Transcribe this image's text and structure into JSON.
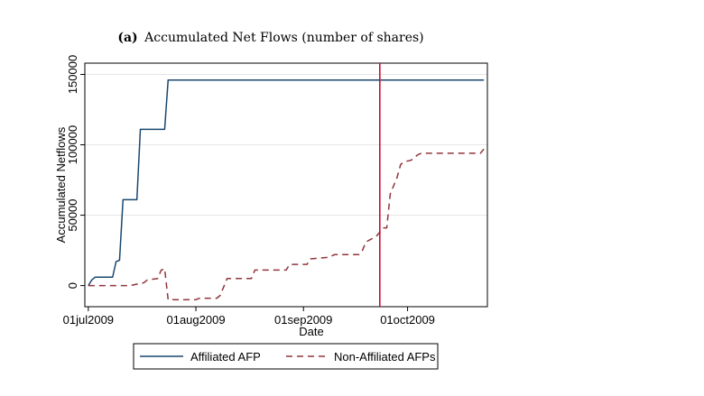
{
  "chart_data": {
    "type": "line",
    "title_tag": "(a)",
    "title": "Accumulated Net Flows (number of shares)",
    "xlabel": "Date",
    "ylabel": "Accumulated Netflows",
    "x_ticks": [
      {
        "date": "2009-07-01",
        "label": "01jul2009"
      },
      {
        "date": "2009-08-01",
        "label": "01aug2009"
      },
      {
        "date": "2009-09-01",
        "label": "01sep2009"
      },
      {
        "date": "2009-10-01",
        "label": "01oct2009"
      }
    ],
    "y_ticks": [
      0,
      50000,
      100000,
      150000
    ],
    "x_range": [
      "2009-06-30",
      "2009-10-24"
    ],
    "y_range": [
      -15000,
      158000
    ],
    "grid": "horizontal",
    "vline": {
      "date": "2009-09-23",
      "color": "#c8102e"
    },
    "legend_position": "bottom",
    "series": [
      {
        "name": "Affiliated AFP",
        "color": "#1a476f",
        "style": "solid",
        "points": [
          [
            "2009-07-01",
            0
          ],
          [
            "2009-07-02",
            4000
          ],
          [
            "2009-07-03",
            6000
          ],
          [
            "2009-07-08",
            6000
          ],
          [
            "2009-07-09",
            17000
          ],
          [
            "2009-07-10",
            18000
          ],
          [
            "2009-07-11",
            61000
          ],
          [
            "2009-07-15",
            61000
          ],
          [
            "2009-07-16",
            111000
          ],
          [
            "2009-07-23",
            111000
          ],
          [
            "2009-07-24",
            146000
          ],
          [
            "2009-10-23",
            146000
          ]
        ]
      },
      {
        "name": "Non-Affiliated AFPs",
        "color": "#90353b",
        "style": "dashed",
        "points": [
          [
            "2009-07-01",
            0
          ],
          [
            "2009-07-13",
            0
          ],
          [
            "2009-07-15",
            1000
          ],
          [
            "2009-07-17",
            2000
          ],
          [
            "2009-07-18",
            4000
          ],
          [
            "2009-07-21",
            5000
          ],
          [
            "2009-07-22",
            11000
          ],
          [
            "2009-07-23",
            12000
          ],
          [
            "2009-07-24",
            -10000
          ],
          [
            "2009-08-01",
            -10000
          ],
          [
            "2009-08-02",
            -9000
          ],
          [
            "2009-08-07",
            -9000
          ],
          [
            "2009-08-08",
            -7000
          ],
          [
            "2009-08-10",
            5000
          ],
          [
            "2009-08-17",
            5000
          ],
          [
            "2009-08-18",
            11000
          ],
          [
            "2009-08-27",
            11000
          ],
          [
            "2009-08-28",
            15000
          ],
          [
            "2009-09-02",
            15000
          ],
          [
            "2009-09-03",
            19000
          ],
          [
            "2009-09-08",
            20000
          ],
          [
            "2009-09-10",
            22000
          ],
          [
            "2009-09-17",
            22000
          ],
          [
            "2009-09-18",
            25000
          ],
          [
            "2009-09-19",
            31000
          ],
          [
            "2009-09-22",
            35000
          ],
          [
            "2009-09-24",
            41000
          ],
          [
            "2009-09-25",
            41000
          ],
          [
            "2009-09-26",
            65000
          ],
          [
            "2009-09-28",
            77000
          ],
          [
            "2009-09-29",
            86000
          ],
          [
            "2009-09-30",
            88000
          ],
          [
            "2009-10-02",
            89000
          ],
          [
            "2009-10-04",
            93000
          ],
          [
            "2009-10-05",
            94000
          ],
          [
            "2009-10-21",
            94000
          ],
          [
            "2009-10-22",
            94000
          ],
          [
            "2009-10-23",
            97000
          ]
        ]
      }
    ]
  }
}
